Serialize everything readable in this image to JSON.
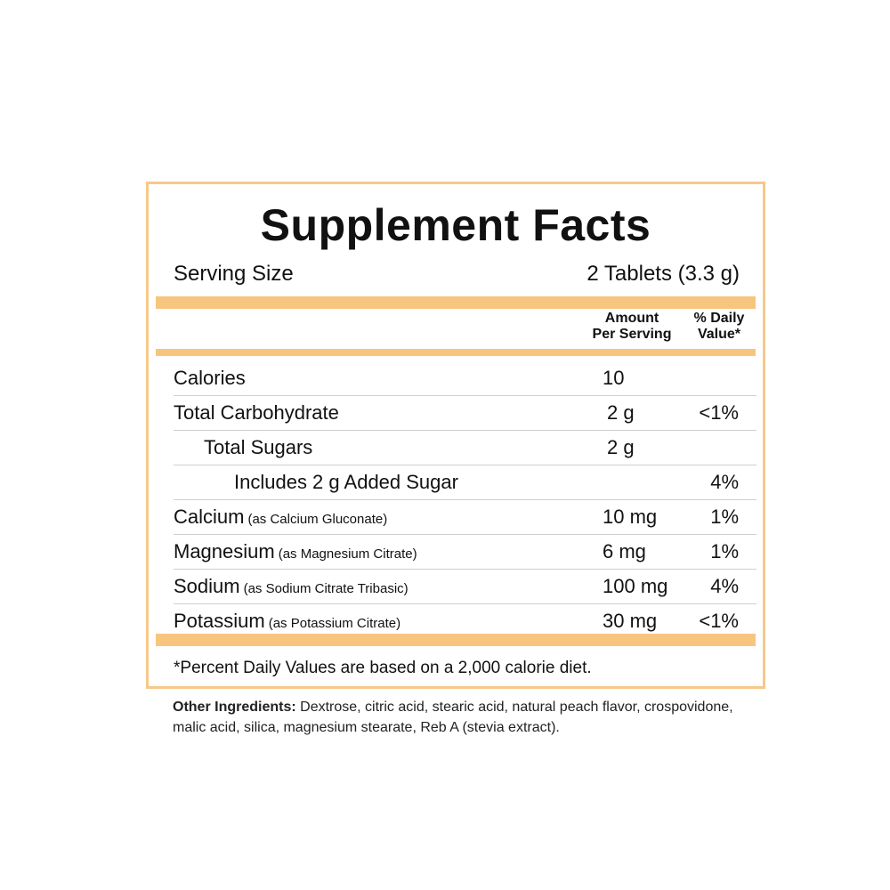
{
  "panel": {
    "title": "Supplement Facts",
    "serving_label": "Serving Size",
    "serving_value": "2 Tablets (3.3 g)",
    "col_amount_line1": "Amount",
    "col_amount_line2": "Per Serving",
    "col_dv_line1": "% Daily",
    "col_dv_line2": "Value*",
    "rows": [
      {
        "name": "Calories",
        "sub": "",
        "amount": "10",
        "dv": ""
      },
      {
        "name": "Total Carbohydrate",
        "sub": "",
        "amount": "2 g",
        "dv": "<1%"
      },
      {
        "name": "Total Sugars",
        "sub": "",
        "amount": "2 g",
        "dv": ""
      },
      {
        "name": "Includes 2 g Added Sugar",
        "sub": "",
        "amount": "",
        "dv": "4%"
      },
      {
        "name": "Calcium",
        "sub": "(as Calcium Gluconate)",
        "amount": "10 mg",
        "dv": "1%"
      },
      {
        "name": "Magnesium",
        "sub": "(as Magnesium Citrate)",
        "amount": "6 mg",
        "dv": "1%"
      },
      {
        "name": "Sodium",
        "sub": "(as Sodium Citrate Tribasic)",
        "amount": "100 mg",
        "dv": "4%"
      },
      {
        "name": "Potassium",
        "sub": "(as Potassium Citrate)",
        "amount": "30 mg",
        "dv": "<1%"
      }
    ],
    "footnote": "*Percent Daily Values are based on a 2,000 calorie diet."
  },
  "other_ingredients": {
    "label": "Other Ingredients:",
    "text": " Dextrose, citric acid, stearic acid, natural peach flavor, crospovidone, malic acid, silica, magnesium stearate, Reb A (stevia extract)."
  },
  "colors": {
    "accent": "#f8c57e",
    "border": "#f7c88a"
  }
}
